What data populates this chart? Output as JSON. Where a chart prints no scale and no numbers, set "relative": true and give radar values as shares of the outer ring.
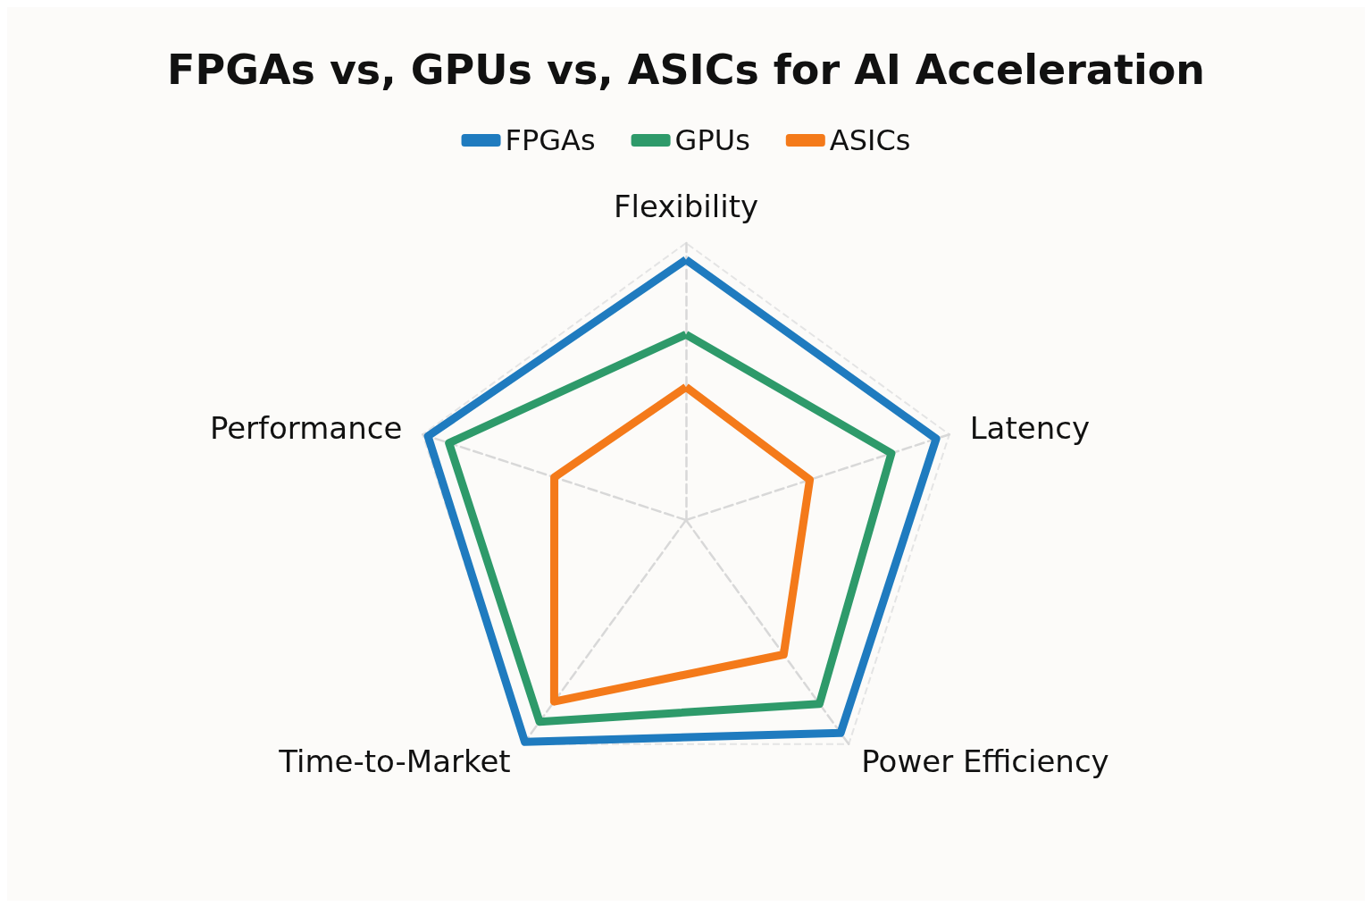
{
  "chart_data": {
    "type": "radar",
    "title": "FPGAs vs, GPUs vs, ASICs for AI Acceleration",
    "relative": true,
    "grid": true,
    "legend": "top",
    "marker": "none",
    "line_style": "solid",
    "categories": [
      "Flexibility",
      "Latency",
      "Power Efficiency",
      "Time-to-Market",
      "Performance"
    ],
    "series": [
      {
        "name": "FPGAs",
        "color": "#1f7bbf",
        "values": [
          0.94,
          0.95,
          0.95,
          0.99,
          0.98
        ]
      },
      {
        "name": "GPUs",
        "color": "#2e9a6a",
        "values": [
          0.67,
          0.78,
          0.82,
          0.9,
          0.9
        ]
      },
      {
        "name": "ASICs",
        "color": "#f47a1a",
        "values": [
          0.48,
          0.47,
          0.6,
          0.81,
          0.5
        ]
      }
    ]
  }
}
